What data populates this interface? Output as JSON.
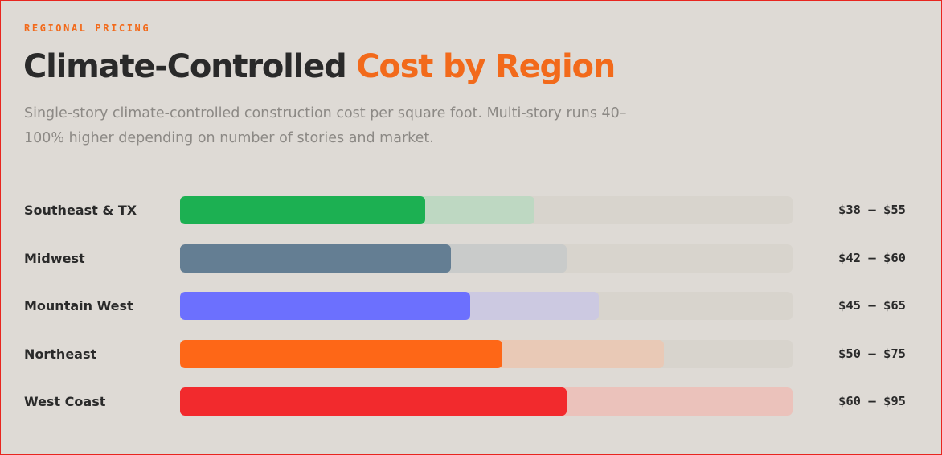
{
  "header": {
    "eyebrow": "REGIONAL PRICING",
    "title_main": "Climate-Controlled",
    "title_accent": "Cost by Region",
    "subtitle": "Single-story climate-controlled construction cost per square foot. Multi-story runs 40–100% higher depending on number of stories and market."
  },
  "chart_data": {
    "type": "bar",
    "orientation": "horizontal",
    "unit": "$ per sq ft",
    "xlim": [
      0,
      95
    ],
    "categories": [
      "Southeast & TX",
      "Midwest",
      "Mountain West",
      "Northeast",
      "West Coast"
    ],
    "series": [
      {
        "values": [
          38,
          42,
          45,
          50,
          60
        ]
      },
      {
        "values": [
          55,
          60,
          65,
          75,
          95
        ]
      }
    ],
    "range_labels": [
      "$38 – $55",
      "$42 – $60",
      "$45 – $65",
      "$50 – $75",
      "$60 – $95"
    ],
    "colors": [
      "#1cb052",
      "#647e93",
      "#6c70fe",
      "#fe6717",
      "#f22a2d"
    ],
    "light_colors": [
      "#bed8c2",
      "#c9cbca",
      "#ccc9e1",
      "#e9c9b6",
      "#ebc2bb"
    ],
    "track_color": "#d8d4cd"
  }
}
